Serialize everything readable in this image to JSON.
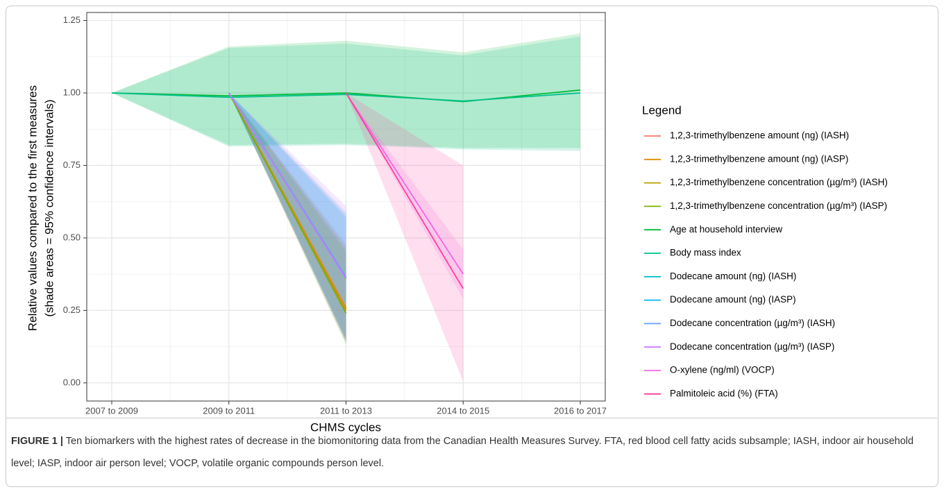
{
  "chart_data": {
    "type": "line",
    "x_label": "CHMS cycles",
    "y_label": [
      "Relative values compared to the first measures",
      "(shade areas = 95% confidence intervals)"
    ],
    "legend_title": "Legend",
    "legend_position": "right",
    "grid": true,
    "categories": [
      "2007 to 2009",
      "2009 to 2011",
      "2011 to 2013",
      "2014 to 2015",
      "2016 to 2017"
    ],
    "ylim": [
      -0.0625,
      1.2775
    ],
    "yticks": [
      {
        "value": 0,
        "label": "0.00"
      },
      {
        "value": 0.25,
        "label": "0.25"
      },
      {
        "value": 0.5,
        "label": "0.50"
      },
      {
        "value": 0.75,
        "label": "0.75"
      },
      {
        "value": 1,
        "label": "1.00"
      },
      {
        "value": 1.25,
        "label": "1.25"
      }
    ],
    "series": [
      {
        "name": "1,2,3-trimethylbenzene amount (ng) (IASH)",
        "color": "#F8766D",
        "values": [
          null,
          1,
          0.26,
          null,
          null
        ],
        "lower": [
          null,
          1,
          0.15,
          null,
          null
        ],
        "upper": [
          null,
          1,
          0.48,
          null,
          null
        ]
      },
      {
        "name": "1,2,3-trimethylbenzene amount (ng) (IASP)",
        "color": "#DE8C00",
        "values": [
          null,
          1,
          0.25,
          null,
          null
        ],
        "lower": [
          null,
          1,
          0.14,
          null,
          null
        ],
        "upper": [
          null,
          1,
          0.47,
          null,
          null
        ]
      },
      {
        "name": "1,2,3-trimethylbenzene concentration (µg/m³) (IASH)",
        "color": "#B79F00",
        "values": [
          null,
          1,
          0.255,
          null,
          null
        ],
        "lower": [
          null,
          1,
          0.15,
          null,
          null
        ],
        "upper": [
          null,
          1,
          0.46,
          null,
          null
        ]
      },
      {
        "name": "1,2,3-trimethylbenzene concentration (µg/m³) (IASP)",
        "color": "#7CAE00",
        "values": [
          null,
          1,
          0.24,
          null,
          null
        ],
        "lower": [
          null,
          1,
          0.13,
          null,
          null
        ],
        "upper": [
          null,
          1,
          0.45,
          null,
          null
        ]
      },
      {
        "name": "Age at household interview",
        "color": "#00BA38",
        "values": [
          1,
          0.99,
          1.0,
          0.97,
          1.01
        ],
        "lower": [
          1,
          0.82,
          0.825,
          0.81,
          0.81
        ],
        "upper": [
          1,
          1.16,
          1.18,
          1.14,
          1.205
        ]
      },
      {
        "name": "Body mass index",
        "color": "#00C08B",
        "values": [
          1,
          0.985,
          0.995,
          0.972,
          1.0
        ],
        "lower": [
          1,
          0.815,
          0.82,
          0.805,
          0.8
        ],
        "upper": [
          1,
          1.155,
          1.17,
          1.13,
          1.195
        ]
      },
      {
        "name": "Dodecane amount (ng) (IASH)",
        "color": "#00BFC4",
        "values": [
          null,
          1,
          0.365,
          null,
          null
        ],
        "lower": [
          null,
          1,
          0.15,
          null,
          null
        ],
        "upper": [
          null,
          1,
          0.58,
          null,
          null
        ]
      },
      {
        "name": "Dodecane amount (ng) (IASP)",
        "color": "#00B4F0",
        "values": [
          null,
          1,
          0.36,
          null,
          null
        ],
        "lower": [
          null,
          1,
          0.14,
          null,
          null
        ],
        "upper": [
          null,
          1,
          0.57,
          null,
          null
        ]
      },
      {
        "name": "Dodecane concentration (µg/m³) (IASH)",
        "color": "#619CFF",
        "values": [
          null,
          1,
          0.365,
          null,
          null
        ],
        "lower": [
          null,
          1,
          0.15,
          null,
          null
        ],
        "upper": [
          null,
          1,
          0.59,
          null,
          null
        ]
      },
      {
        "name": "Dodecane concentration (µg/m³) (IASP)",
        "color": "#C77CFF",
        "values": [
          null,
          1,
          0.36,
          null,
          null
        ],
        "lower": [
          null,
          1,
          0.14,
          null,
          null
        ],
        "upper": [
          null,
          1,
          0.61,
          null,
          null
        ]
      },
      {
        "name": "O-xylene (ng/ml) (VOCP)",
        "color": "#F564E3",
        "values": [
          null,
          null,
          1,
          0.375,
          null
        ],
        "lower": [
          null,
          null,
          1,
          0.29,
          null
        ],
        "upper": [
          null,
          null,
          1,
          0.46,
          null
        ]
      },
      {
        "name": "Palmitoleic acid (%) (FTA)",
        "color": "#FF3FA0",
        "values": [
          null,
          null,
          1,
          0.325,
          null
        ],
        "lower": [
          null,
          null,
          1,
          0.005,
          null
        ],
        "upper": [
          null,
          null,
          1,
          0.75,
          null
        ]
      }
    ]
  },
  "caption": {
    "label": "FIGURE 1 |",
    "text": "Ten biomarkers with the highest rates of decrease in the biomonitoring data from the Canadian Health Measures Survey. FTA, red blood cell fatty acids subsample; IASH, indoor air household level; IASP, indoor air person level; VOCP, volatile organic compounds person level."
  }
}
